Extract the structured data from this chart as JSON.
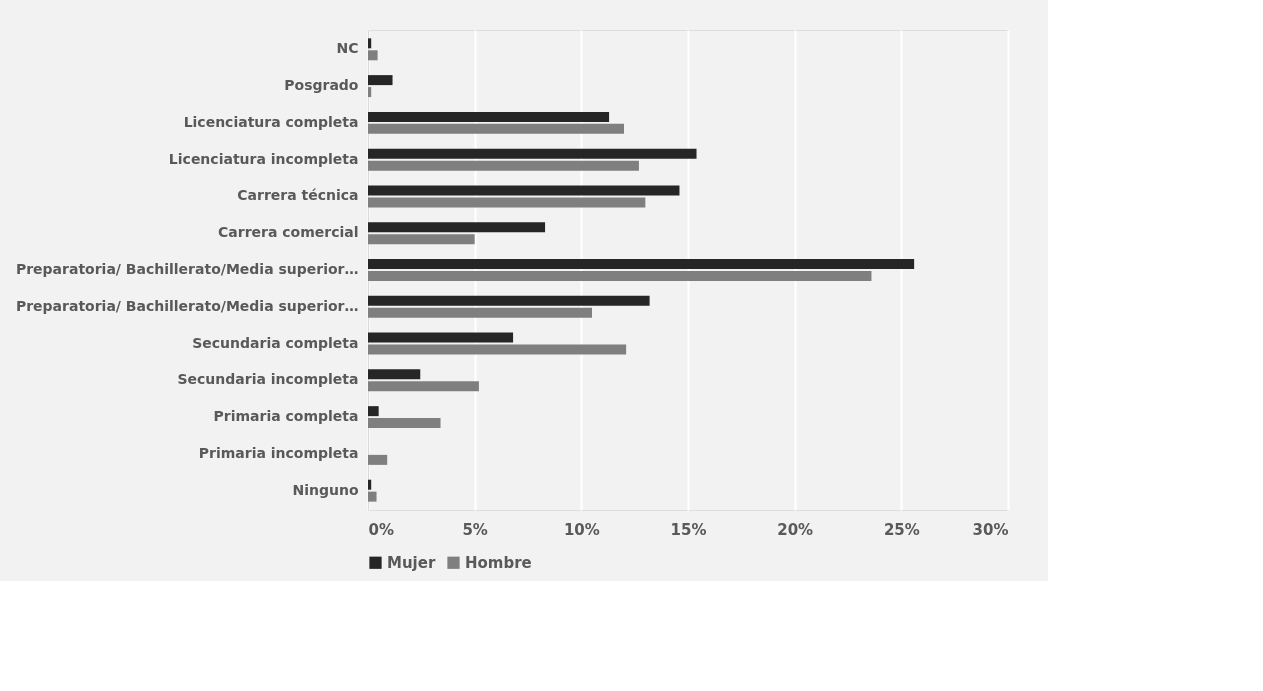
{
  "chart_data": {
    "type": "bar",
    "orientation": "horizontal",
    "categories": [
      "NC",
      "Posgrado",
      "Licenciatura completa",
      "Licenciatura incompleta",
      "Carrera técnica",
      "Carrera comercial",
      "Preparatoria/ Bachillerato/Media superior…",
      "Preparatoria/ Bachillerato/Media superior…",
      "Secundaria completa",
      "Secundaria incompleta",
      "Primaria completa",
      "Primaria incompleta",
      "Ninguno"
    ],
    "series": [
      {
        "name": "Mujer",
        "color": "#262626",
        "values": [
          0.15,
          1.15,
          11.3,
          15.4,
          14.6,
          8.3,
          25.6,
          13.2,
          6.8,
          2.45,
          0.5,
          0,
          0.15
        ]
      },
      {
        "name": "Hombre",
        "color": "#7f7f7f",
        "values": [
          0.45,
          0.15,
          12.0,
          12.7,
          13.0,
          5.0,
          23.6,
          10.5,
          12.1,
          5.2,
          3.4,
          0.9,
          0.4
        ]
      }
    ],
    "xlim": [
      0,
      30
    ],
    "xticks": [
      {
        "value": 0,
        "label": "0%"
      },
      {
        "value": 5,
        "label": "5%"
      },
      {
        "value": 10,
        "label": "10%"
      },
      {
        "value": 15,
        "label": "15%"
      },
      {
        "value": 20,
        "label": "20%"
      },
      {
        "value": 25,
        "label": "25%"
      },
      {
        "value": 30,
        "label": "30%"
      }
    ],
    "grid": "x",
    "legend": "bottom"
  }
}
